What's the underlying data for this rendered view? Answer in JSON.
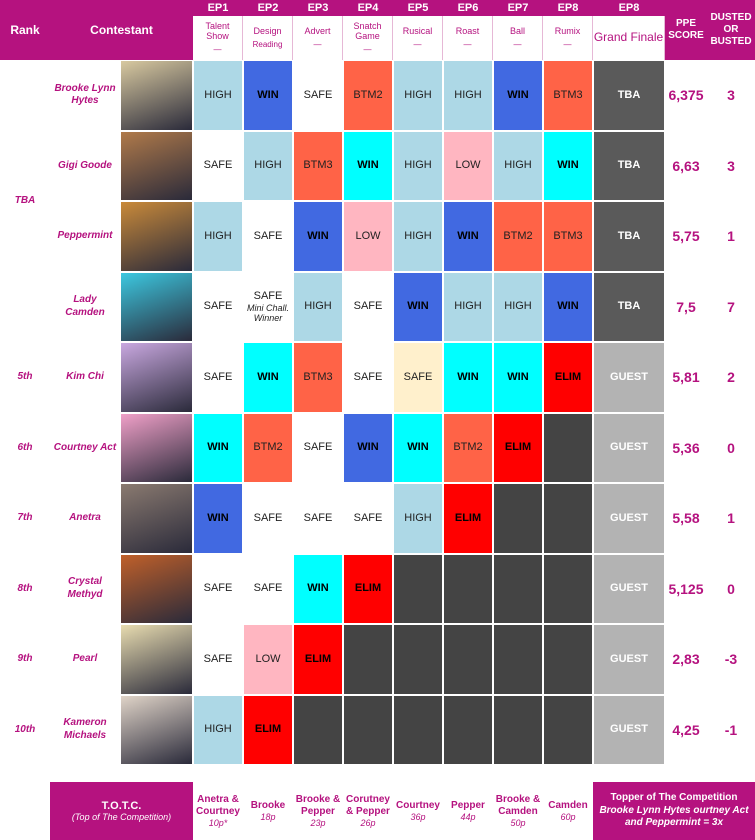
{
  "header": {
    "rank": "Rank",
    "contestant": "Contestant",
    "episodes": [
      {
        "ep": "EP1",
        "theme": "Talent Show",
        "sub": "—"
      },
      {
        "ep": "EP2",
        "theme": "Design",
        "sub": "Reading"
      },
      {
        "ep": "EP3",
        "theme": "Advert",
        "sub": "—"
      },
      {
        "ep": "EP4",
        "theme": "Snatch Game",
        "sub": "—"
      },
      {
        "ep": "EP5",
        "theme": "Rusical",
        "sub": "—"
      },
      {
        "ep": "EP6",
        "theme": "Roast",
        "sub": "—"
      },
      {
        "ep": "EP7",
        "theme": "Ball",
        "sub": "—"
      },
      {
        "ep": "EP8",
        "theme": "Rumix",
        "sub": "—"
      }
    ],
    "finale": {
      "ep": "EP8",
      "theme": "Grand Finale"
    },
    "ppe": "PPE SCORE",
    "dusted": "DUSTED OR BUSTED"
  },
  "rows": [
    {
      "rank": "TBA",
      "name": "Brooke Lynn Hytes",
      "photo": "#d8c9a0",
      "cells": [
        {
          "text": "HIGH",
          "bg": "#add8e6"
        },
        {
          "text": "WIN",
          "bg": "#4169e1"
        },
        {
          "text": "SAFE",
          "bg": "#ffffff"
        },
        {
          "text": "BTM2",
          "bg": "#ff6347"
        },
        {
          "text": "HIGH",
          "bg": "#add8e6"
        },
        {
          "text": "HIGH",
          "bg": "#add8e6"
        },
        {
          "text": "WIN",
          "bg": "#4169e1"
        },
        {
          "text": "BTM3",
          "bg": "#ff6347"
        }
      ],
      "finale": {
        "text": "TBA",
        "bg": "#5a5a5a"
      },
      "ppe": "6,375",
      "dusted": "3"
    },
    {
      "rank": null,
      "name": "Gigi Goode",
      "photo": "#b07a4a",
      "cells": [
        {
          "text": "SAFE",
          "bg": "#ffffff"
        },
        {
          "text": "HIGH",
          "bg": "#add8e6"
        },
        {
          "text": "BTM3",
          "bg": "#ff6347"
        },
        {
          "text": "WIN",
          "bg": "#00ffff"
        },
        {
          "text": "HIGH",
          "bg": "#add8e6"
        },
        {
          "text": "LOW",
          "bg": "#ffb6c1"
        },
        {
          "text": "HIGH",
          "bg": "#add8e6"
        },
        {
          "text": "WIN",
          "bg": "#00ffff"
        }
      ],
      "finale": {
        "text": "TBA",
        "bg": "#5a5a5a"
      },
      "ppe": "6,63",
      "dusted": "3"
    },
    {
      "rank": null,
      "name": "Peppermint",
      "photo": "#c98a3a",
      "cells": [
        {
          "text": "HIGH",
          "bg": "#add8e6"
        },
        {
          "text": "SAFE",
          "bg": "#ffffff"
        },
        {
          "text": "WIN",
          "bg": "#4169e1"
        },
        {
          "text": "LOW",
          "bg": "#ffb6c1"
        },
        {
          "text": "HIGH",
          "bg": "#add8e6"
        },
        {
          "text": "WIN",
          "bg": "#4169e1"
        },
        {
          "text": "BTM2",
          "bg": "#ff6347"
        },
        {
          "text": "BTM3",
          "bg": "#ff6347"
        }
      ],
      "finale": {
        "text": "TBA",
        "bg": "#5a5a5a"
      },
      "ppe": "5,75",
      "dusted": "1"
    },
    {
      "rank": null,
      "name": "Lady Camden",
      "photo": "#3cc8e0",
      "cells": [
        {
          "text": "SAFE",
          "bg": "#ffffff"
        },
        {
          "text": "SAFE",
          "note": "Mini Chall. Winner",
          "bg": "#ffffff"
        },
        {
          "text": "HIGH",
          "bg": "#add8e6"
        },
        {
          "text": "SAFE",
          "bg": "#ffffff"
        },
        {
          "text": "WIN",
          "bg": "#4169e1"
        },
        {
          "text": "HIGH",
          "bg": "#add8e6"
        },
        {
          "text": "HIGH",
          "bg": "#add8e6"
        },
        {
          "text": "WIN",
          "bg": "#4169e1"
        }
      ],
      "finale": {
        "text": "TBA",
        "bg": "#5a5a5a"
      },
      "ppe": "7,5",
      "dusted": "7"
    },
    {
      "rank": "5th",
      "name": "Kim Chi",
      "photo": "#c9a8e0",
      "cells": [
        {
          "text": "SAFE",
          "bg": "#ffffff"
        },
        {
          "text": "WIN",
          "bg": "#00ffff"
        },
        {
          "text": "BTM3",
          "bg": "#ff6347"
        },
        {
          "text": "SAFE",
          "bg": "#ffffff"
        },
        {
          "text": "SAFE",
          "bg": "#fff0cc"
        },
        {
          "text": "WIN",
          "bg": "#00ffff"
        },
        {
          "text": "WIN",
          "bg": "#00ffff"
        },
        {
          "text": "ELIM",
          "bg": "#ff0000"
        }
      ],
      "finale": {
        "text": "GUEST",
        "bg": "#b3b3b3"
      },
      "ppe": "5,81",
      "dusted": "2"
    },
    {
      "rank": "6th",
      "name": "Courtney Act",
      "photo": "#f0a0c8",
      "cells": [
        {
          "text": "WIN",
          "bg": "#00ffff"
        },
        {
          "text": "BTM2",
          "bg": "#ff6347"
        },
        {
          "text": "SAFE",
          "bg": "#ffffff"
        },
        {
          "text": "WIN",
          "bg": "#4169e1"
        },
        {
          "text": "WIN",
          "bg": "#00ffff"
        },
        {
          "text": "BTM2",
          "bg": "#ff6347"
        },
        {
          "text": "ELIM",
          "bg": "#ff0000"
        },
        {
          "bg": "#444444"
        }
      ],
      "finale": {
        "text": "GUEST",
        "bg": "#b3b3b3"
      },
      "ppe": "5,36",
      "dusted": "0"
    },
    {
      "rank": "7th",
      "name": "Anetra",
      "photo": "#8a7a70",
      "cells": [
        {
          "text": "WIN",
          "bg": "#4169e1"
        },
        {
          "text": "SAFE",
          "bg": "#ffffff"
        },
        {
          "text": "SAFE",
          "bg": "#ffffff"
        },
        {
          "text": "SAFE",
          "bg": "#ffffff"
        },
        {
          "text": "HIGH",
          "bg": "#add8e6"
        },
        {
          "text": "ELIM",
          "bg": "#ff0000"
        },
        {
          "bg": "#444444"
        },
        {
          "bg": "#444444"
        }
      ],
      "finale": {
        "text": "GUEST",
        "bg": "#b3b3b3"
      },
      "ppe": "5,58",
      "dusted": "1"
    },
    {
      "rank": "8th",
      "name": "Crystal Methyd",
      "photo": "#c0602a",
      "cells": [
        {
          "text": "SAFE",
          "bg": "#ffffff"
        },
        {
          "text": "SAFE",
          "bg": "#ffffff"
        },
        {
          "text": "WIN",
          "bg": "#00ffff"
        },
        {
          "text": "ELIM",
          "bg": "#ff0000"
        },
        {
          "bg": "#444444"
        },
        {
          "bg": "#444444"
        },
        {
          "bg": "#444444"
        },
        {
          "bg": "#444444"
        }
      ],
      "finale": {
        "text": "GUEST",
        "bg": "#b3b3b3"
      },
      "ppe": "5,125",
      "dusted": "0"
    },
    {
      "rank": "9th",
      "name": "Pearl",
      "photo": "#e8dcb0",
      "cells": [
        {
          "text": "SAFE",
          "bg": "#ffffff"
        },
        {
          "text": "LOW",
          "bg": "#ffb6c1"
        },
        {
          "text": "ELIM",
          "bg": "#ff0000"
        },
        {
          "bg": "#444444"
        },
        {
          "bg": "#444444"
        },
        {
          "bg": "#444444"
        },
        {
          "bg": "#444444"
        },
        {
          "bg": "#444444"
        }
      ],
      "finale": {
        "text": "GUEST",
        "bg": "#b3b3b3"
      },
      "ppe": "2,83",
      "dusted": "-3"
    },
    {
      "rank": "10th",
      "name": "Kameron Michaels",
      "photo": "#e0d4c8",
      "cells": [
        {
          "text": "HIGH",
          "bg": "#add8e6"
        },
        {
          "text": "ELIM",
          "bg": "#ff0000"
        },
        {
          "bg": "#444444"
        },
        {
          "bg": "#444444"
        },
        {
          "bg": "#444444"
        },
        {
          "bg": "#444444"
        },
        {
          "bg": "#444444"
        },
        {
          "bg": "#444444"
        }
      ],
      "finale": {
        "text": "GUEST",
        "bg": "#b3b3b3"
      },
      "ppe": "4,25",
      "dusted": "-1"
    }
  ],
  "footer": {
    "title": "T.O.T.C.",
    "subtitle": "(Top of The Competition)",
    "tops": [
      {
        "names": "Anetra & Courtney",
        "points": "10p*"
      },
      {
        "names": "Brooke",
        "points": "18p"
      },
      {
        "names": "Brooke & Pepper",
        "points": "23p"
      },
      {
        "names": "Corutney & Pepper",
        "points": "26p"
      },
      {
        "names": "Courtney",
        "points": "36p"
      },
      {
        "names": "Pepper",
        "points": "44p"
      },
      {
        "names": "Brooke & Camden",
        "points": "50p"
      },
      {
        "names": "Camden",
        "points": "60p"
      }
    ],
    "topper": "Topper of The Competition",
    "topper_note": "Brooke Lynn Hytes ourtney Act and Peppermint = 3x"
  }
}
